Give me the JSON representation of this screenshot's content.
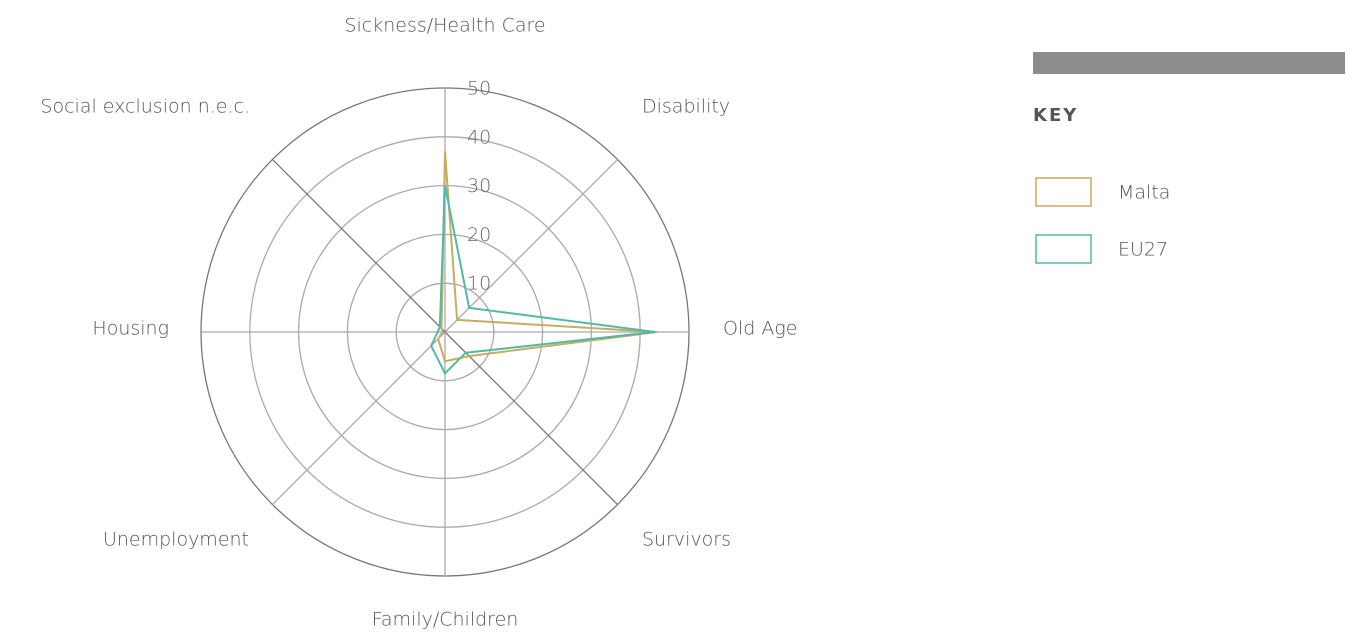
{
  "chart_data": {
    "type": "radar",
    "categories": [
      "Sickness/Health Care",
      "Disability",
      "Old Age",
      "Survivors",
      "Family/Children",
      "Unemployment",
      "Housing",
      "Social exclusion n.e.c."
    ],
    "series": [
      {
        "name": "Malta",
        "color": "#c9ac63",
        "values": [
          37,
          3.5,
          43.5,
          7,
          6,
          2,
          0.5,
          1
        ]
      },
      {
        "name": "EU27",
        "color": "#52b9a7",
        "values": [
          30,
          7,
          43,
          6,
          8.5,
          4,
          1.5,
          1.5
        ]
      }
    ],
    "ylim": [
      0,
      50
    ],
    "yticks": [
      10,
      20,
      30,
      40,
      50
    ],
    "legend_title": "KEY"
  }
}
